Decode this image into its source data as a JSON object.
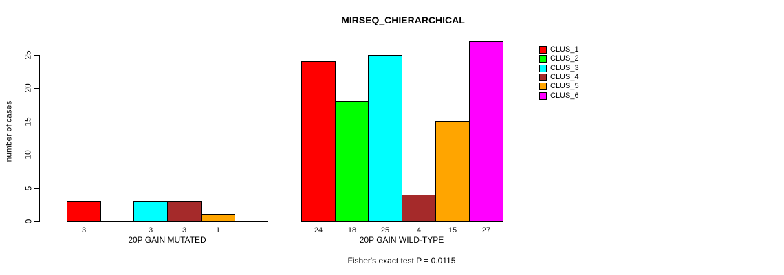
{
  "chart_data": {
    "type": "bar",
    "title": "MIRSEQ_CHIERARCHICAL",
    "ylabel": "number of cases",
    "xlabel": "",
    "ylim": [
      0,
      27
    ],
    "yticks": [
      0,
      5,
      10,
      15,
      20,
      25
    ],
    "grid": false,
    "legend_position": "top-right",
    "bar_value_labels": true,
    "hide_zero_value_labels": true,
    "categories": [
      "20P GAIN MUTATED",
      "20P GAIN WILD-TYPE"
    ],
    "series": [
      {
        "name": "CLUS_1",
        "color": "#FF0000",
        "values": [
          3,
          24
        ]
      },
      {
        "name": "CLUS_2",
        "color": "#00FF00",
        "values": [
          0,
          18
        ]
      },
      {
        "name": "CLUS_3",
        "color": "#00FFFF",
        "values": [
          3,
          25
        ]
      },
      {
        "name": "CLUS_4",
        "color": "#A52A2A",
        "values": [
          3,
          4
        ]
      },
      {
        "name": "CLUS_5",
        "color": "#FFA500",
        "values": [
          1,
          15
        ]
      },
      {
        "name": "CLUS_6",
        "color": "#FF00FF",
        "values": [
          0,
          27
        ]
      }
    ],
    "footnote": "Fisher's exact test P = 0.0115"
  }
}
